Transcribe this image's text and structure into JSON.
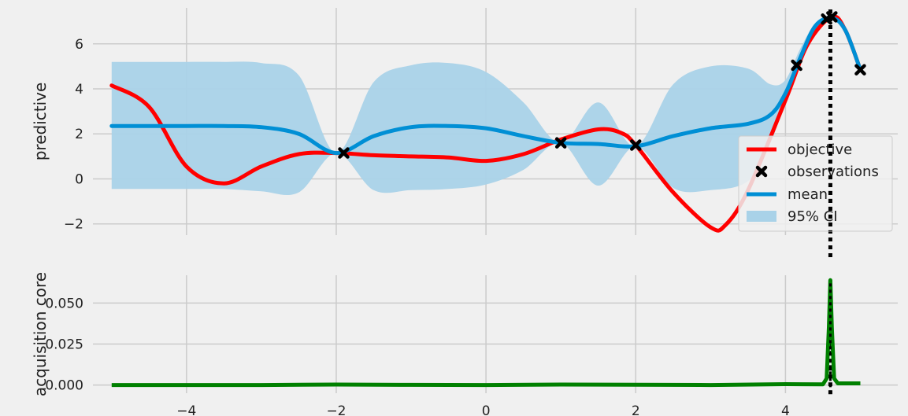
{
  "chart_data": [
    {
      "type": "line",
      "ylabel": "predictive",
      "xlim": [
        -5.25,
        5.5
      ],
      "ylim": [
        -2.5,
        7.6
      ],
      "xticks": [
        -4,
        -2,
        0,
        2,
        4
      ],
      "yticks": [
        -2,
        0,
        2,
        4,
        6
      ],
      "ytick_labels": [
        "−2",
        "0",
        "2",
        "4",
        "6"
      ],
      "grid": true,
      "legend_position": "lower-right",
      "legend": [
        "objective",
        "observations",
        "mean",
        "95% CI"
      ],
      "colors": {
        "objective": "#ff0000",
        "observations": "#000000",
        "mean": "#008fd5",
        "ci": "#a9d2e8",
        "proposal": "#000000"
      },
      "proposal_x": 4.6,
      "observations": {
        "x": [
          -1.9,
          1.0,
          2.0,
          4.15,
          4.55,
          4.62,
          5.0
        ],
        "y": [
          1.15,
          1.6,
          1.5,
          5.05,
          7.1,
          7.2,
          4.85
        ]
      },
      "objective": {
        "x": [
          -5.0,
          -4.5,
          -4.0,
          -3.5,
          -3.0,
          -2.5,
          -2.0,
          -1.5,
          -1.0,
          -0.5,
          0.0,
          0.5,
          1.0,
          1.5,
          1.8,
          2.0,
          2.5,
          3.0,
          3.2,
          3.5,
          4.0,
          4.3,
          4.62,
          4.8,
          5.0
        ],
        "y": [
          4.15,
          3.2,
          0.55,
          -0.2,
          0.55,
          1.1,
          1.15,
          1.05,
          1.0,
          0.95,
          0.8,
          1.1,
          1.75,
          2.2,
          2.05,
          1.5,
          -0.6,
          -2.15,
          -2.05,
          -0.5,
          3.5,
          6.0,
          7.2,
          6.6,
          4.85
        ]
      },
      "mean": {
        "x": [
          -5.0,
          -4.5,
          -4.0,
          -3.5,
          -3.0,
          -2.5,
          -2.0,
          -1.5,
          -1.0,
          -0.5,
          0.0,
          0.5,
          1.0,
          1.5,
          2.0,
          2.5,
          3.0,
          3.5,
          3.8,
          4.0,
          4.2,
          4.4,
          4.62,
          4.8,
          5.0
        ],
        "y": [
          2.35,
          2.35,
          2.35,
          2.35,
          2.3,
          2.0,
          1.15,
          1.9,
          2.3,
          2.35,
          2.25,
          1.9,
          1.6,
          1.55,
          1.45,
          1.9,
          2.25,
          2.45,
          2.85,
          3.8,
          5.4,
          6.8,
          7.15,
          6.6,
          4.85
        ]
      },
      "ci_lower": [
        -0.45,
        -0.45,
        -0.45,
        -0.45,
        -0.55,
        -0.6,
        1.15,
        -0.5,
        -0.5,
        -0.45,
        -0.25,
        0.4,
        1.6,
        -0.3,
        1.45,
        -0.4,
        -0.5,
        -0.1,
        1.6,
        3.5,
        5.1,
        6.7,
        7.15,
        6.5,
        4.85
      ],
      "ci_upper": [
        5.2,
        5.2,
        5.2,
        5.2,
        5.15,
        4.6,
        1.15,
        4.3,
        5.05,
        5.15,
        4.75,
        3.4,
        1.6,
        3.4,
        1.45,
        4.2,
        5.0,
        4.9,
        4.2,
        4.4,
        5.8,
        6.9,
        7.15,
        6.7,
        4.85
      ]
    },
    {
      "type": "line",
      "ylabel": "acquisition core",
      "xlim": [
        -5.25,
        5.5
      ],
      "ylim": [
        -0.005,
        0.067
      ],
      "xticks": [
        -4,
        -2,
        0,
        2,
        4
      ],
      "xtick_labels": [
        "−4",
        "−2",
        "0",
        "2",
        "4"
      ],
      "yticks": [
        0.0,
        0.025,
        0.05
      ],
      "ytick_labels": [
        "0.000",
        "0.025",
        "0.050"
      ],
      "grid": true,
      "colors": {
        "acquisition": "#008000",
        "proposal": "#000000"
      },
      "proposal_x": 4.6,
      "acquisition": {
        "x": [
          -5.0,
          -4.0,
          -3.0,
          -2.0,
          -1.0,
          0.0,
          1.0,
          2.0,
          3.0,
          4.0,
          4.5,
          4.55,
          4.58,
          4.6,
          4.62,
          4.65,
          4.7,
          5.0
        ],
        "y": [
          0.0,
          0.0,
          0.0,
          0.0003,
          0.0001,
          0.0,
          0.0003,
          0.0002,
          0.0,
          0.0005,
          0.0004,
          0.004,
          0.035,
          0.064,
          0.035,
          0.004,
          0.001,
          0.001
        ]
      }
    }
  ]
}
